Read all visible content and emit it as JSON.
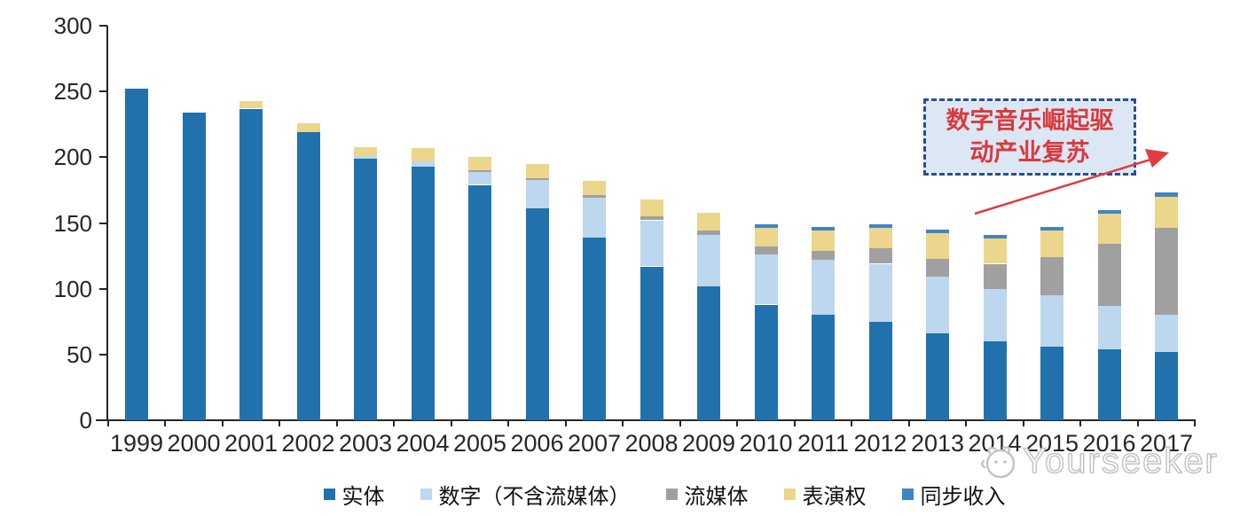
{
  "chart_data": {
    "type": "bar",
    "stacked": true,
    "categories": [
      "1999",
      "2000",
      "2001",
      "2002",
      "2003",
      "2004",
      "2005",
      "2006",
      "2007",
      "2008",
      "2009",
      "2010",
      "2011",
      "2012",
      "2013",
      "2014",
      "2015",
      "2016",
      "2017"
    ],
    "series": [
      {
        "name": "实体",
        "color": "#2171AD",
        "values": [
          252,
          234,
          237,
          219,
          199,
          193,
          179,
          161,
          139,
          117,
          102,
          88,
          80,
          75,
          66,
          60,
          56,
          54,
          52
        ]
      },
      {
        "name": "数字（不含流媒体）",
        "color": "#BDD7EE",
        "values": [
          0,
          0,
          0,
          0,
          2,
          4,
          10,
          22,
          30,
          35,
          39,
          38,
          42,
          44,
          43,
          40,
          39,
          33,
          28
        ]
      },
      {
        "name": "流媒体",
        "color": "#A0A0A0",
        "values": [
          0,
          0,
          0,
          0,
          0,
          0,
          1,
          1,
          2,
          3,
          3,
          6,
          7,
          12,
          14,
          19,
          29,
          47,
          66
        ]
      },
      {
        "name": "表演权",
        "color": "#EBD68B",
        "values": [
          0,
          0,
          6,
          7,
          7,
          10,
          10,
          11,
          11,
          13,
          14,
          14,
          15,
          15,
          19,
          19,
          20,
          23,
          24
        ]
      },
      {
        "name": "同步收入",
        "color": "#3F85C4",
        "values": [
          0,
          0,
          0,
          0,
          0,
          0,
          0,
          0,
          0,
          0,
          0,
          3,
          3,
          3,
          3,
          3,
          3,
          3,
          3
        ]
      }
    ],
    "title": "",
    "xlabel": "",
    "ylabel": "",
    "ylim": [
      0,
      300
    ],
    "yticks": [
      0,
      50,
      100,
      150,
      200,
      250,
      300
    ],
    "grid": false,
    "legend_position": "bottom"
  },
  "annotation": {
    "line1": "数字音乐崛起驱",
    "line2": "动产业复苏",
    "text_color": "#d93a3d",
    "box_fill": "#dce7f4",
    "box_border": "#2f4f88",
    "arrow_color": "#e23b40"
  },
  "watermark": {
    "text": "Yourseeker"
  }
}
